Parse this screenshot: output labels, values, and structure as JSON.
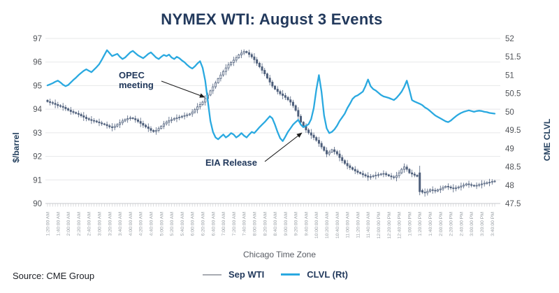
{
  "title": "NYMEX WTI: August 3 Events",
  "source": "Source: CME Group",
  "colors": {
    "title_navy": "#22395c",
    "clvl_line": "#2aa9e0",
    "candle": "#4e5f7b",
    "legend_wti_marker": "#a8acb2",
    "grid": "#e7e8ea",
    "axis_comb": "#c7c9cd",
    "y_tick_text": "#515459",
    "x_tick_text": "#9aa0a6",
    "arrow": "#1c1c1c"
  },
  "legend": [
    {
      "label": "Sep WTI"
    },
    {
      "label": "CLVL (Rt)"
    }
  ],
  "chart_data": {
    "type": "candlestick+line",
    "title": "NYMEX WTI: August 3 Events",
    "xlabel": "Chicago Time Zone",
    "legend_position": "bottom",
    "grid": "horizontal",
    "x_start": "1:20:00 AM",
    "x_end": "3:45:00 PM",
    "x_step_minutes": 5,
    "x_tick_every_steps": 4,
    "x_tick_labels": [
      "1:20:00 AM",
      "1:40:00 AM",
      "2:00:00 AM",
      "2:20:00 AM",
      "2:40:00 AM",
      "3:00:00 AM",
      "3:20:00 AM",
      "3:40:00 AM",
      "4:00:00 AM",
      "4:20:00 AM",
      "4:40:00 AM",
      "5:00:00 AM",
      "5:20:00 AM",
      "5:40:00 AM",
      "6:00:00 AM",
      "6:20:00 AM",
      "6:40:00 AM",
      "7:00:00 AM",
      "7:20:00 AM",
      "7:40:00 AM",
      "8:00:00 AM",
      "8:20:00 AM",
      "8:40:00 AM",
      "9:00:00 AM",
      "9:20:00 AM",
      "9:40:00 AM",
      "10:00:00 AM",
      "10:20:00 AM",
      "10:40:00 AM",
      "11:00:00 AM",
      "11:20:00 AM",
      "11:40:00 AM",
      "12:00:00 PM",
      "12:20:00 PM",
      "12:40:00 PM",
      "1:00:00 PM",
      "1:20:00 PM",
      "1:40:00 PM",
      "2:00:00 PM",
      "2:20:00 PM",
      "2:40:00 PM",
      "3:00:00 PM",
      "3:20:00 PM",
      "3:40:00 PM"
    ],
    "left_axis": {
      "label": "$/barrel",
      "min": 90,
      "max": 97,
      "tick_step": 1
    },
    "right_axis": {
      "label": "CME CLVL",
      "min": 47.5,
      "max": 52,
      "tick_step": 0.5
    },
    "series": [
      {
        "name": "Sep WTI",
        "type": "candlestick",
        "axis": "left",
        "mid": [
          94.32,
          94.28,
          94.25,
          94.2,
          94.15,
          94.12,
          94.08,
          94.02,
          93.96,
          93.9,
          93.86,
          93.82,
          93.78,
          93.72,
          93.66,
          93.6,
          93.56,
          93.52,
          93.5,
          93.46,
          93.42,
          93.38,
          93.35,
          93.3,
          93.25,
          93.22,
          93.28,
          93.35,
          93.42,
          93.5,
          93.56,
          93.6,
          93.63,
          93.6,
          93.55,
          93.48,
          93.4,
          93.32,
          93.25,
          93.18,
          93.1,
          93.05,
          93.1,
          93.18,
          93.28,
          93.38,
          93.45,
          93.52,
          93.56,
          93.6,
          93.63,
          93.66,
          93.7,
          93.73,
          93.76,
          93.8,
          93.88,
          93.98,
          94.1,
          94.2,
          94.3,
          94.45,
          94.6,
          94.78,
          94.95,
          95.12,
          95.3,
          95.45,
          95.6,
          95.75,
          95.88,
          95.98,
          96.08,
          96.18,
          96.3,
          96.38,
          96.45,
          96.4,
          96.32,
          96.22,
          96.1,
          95.95,
          95.8,
          95.65,
          95.5,
          95.32,
          95.15,
          94.98,
          94.85,
          94.75,
          94.65,
          94.58,
          94.5,
          94.4,
          94.3,
          94.15,
          93.95,
          93.7,
          93.45,
          93.28,
          93.12,
          93.0,
          92.9,
          92.8,
          92.68,
          92.55,
          92.4,
          92.25,
          92.1,
          92.18,
          92.28,
          92.2,
          92.1,
          91.95,
          91.82,
          91.7,
          91.6,
          91.52,
          91.45,
          91.38,
          91.32,
          91.27,
          91.22,
          91.17,
          91.12,
          91.14,
          91.17,
          91.2,
          91.22,
          91.25,
          91.27,
          91.22,
          91.17,
          91.13,
          91.1,
          91.18,
          91.3,
          91.45,
          91.55,
          91.45,
          91.3,
          91.25,
          91.2,
          91.15,
          90.55,
          90.48,
          90.45,
          90.52,
          90.58,
          90.56,
          90.53,
          90.58,
          90.62,
          90.68,
          90.73,
          90.7,
          90.66,
          90.63,
          90.66,
          90.7,
          90.74,
          90.78,
          90.83,
          90.8,
          90.77,
          90.74,
          90.77,
          90.8,
          90.83,
          90.86,
          90.88,
          90.9,
          90.93,
          90.95
        ],
        "big_drop_candle": {
          "index": 144,
          "time": "1:20:00 PM",
          "open": 91.3,
          "high": 91.6,
          "low": 90.35,
          "close": 90.5
        }
      },
      {
        "name": "CLVL (Rt)",
        "type": "line",
        "axis": "right",
        "values": [
          50.72,
          50.75,
          50.78,
          50.82,
          50.85,
          50.8,
          50.74,
          50.7,
          50.73,
          50.8,
          50.87,
          50.93,
          51.0,
          51.06,
          51.12,
          51.16,
          51.12,
          51.08,
          51.15,
          51.22,
          51.3,
          51.42,
          51.55,
          51.68,
          51.6,
          51.52,
          51.55,
          51.58,
          51.5,
          51.44,
          51.48,
          51.55,
          51.62,
          51.66,
          51.6,
          51.54,
          51.5,
          51.46,
          51.52,
          51.58,
          51.62,
          51.55,
          51.48,
          51.44,
          51.5,
          51.55,
          51.52,
          51.56,
          51.48,
          51.44,
          51.5,
          51.46,
          51.4,
          51.35,
          51.28,
          51.22,
          51.18,
          51.24,
          51.32,
          51.38,
          51.2,
          50.85,
          50.3,
          49.75,
          49.45,
          49.3,
          49.25,
          49.32,
          49.38,
          49.3,
          49.35,
          49.42,
          49.38,
          49.3,
          49.35,
          49.42,
          49.35,
          49.3,
          49.38,
          49.45,
          49.42,
          49.5,
          49.58,
          49.65,
          49.72,
          49.8,
          49.88,
          49.82,
          49.65,
          49.45,
          49.28,
          49.2,
          49.32,
          49.45,
          49.55,
          49.65,
          49.72,
          49.78,
          49.65,
          49.58,
          49.62,
          49.66,
          49.8,
          50.1,
          50.6,
          51.0,
          50.55,
          49.9,
          49.55,
          49.42,
          49.45,
          49.52,
          49.62,
          49.75,
          49.85,
          49.95,
          50.1,
          50.22,
          50.35,
          50.42,
          50.45,
          50.5,
          50.55,
          50.7,
          50.88,
          50.7,
          50.62,
          50.58,
          50.52,
          50.46,
          50.42,
          50.4,
          50.38,
          50.35,
          50.32,
          50.38,
          50.46,
          50.55,
          50.68,
          50.85,
          50.6,
          50.32,
          50.28,
          50.25,
          50.22,
          50.18,
          50.12,
          50.08,
          50.02,
          49.96,
          49.9,
          49.86,
          49.82,
          49.78,
          49.74,
          49.72,
          49.76,
          49.82,
          49.88,
          49.93,
          49.97,
          50.0,
          50.02,
          50.04,
          50.02,
          50.0,
          50.02,
          50.03,
          50.02,
          50.0,
          49.99,
          49.97,
          49.96,
          49.95
        ]
      }
    ],
    "annotations": [
      {
        "text": "OPEC\nmeeting",
        "target_time": "6:25 AM",
        "points_at": "CLVL (Rt) drop"
      },
      {
        "text": "EIA Release",
        "target_time": "9:30 AM",
        "points_at": "Sep WTI / CLVL at 9:30 AM"
      }
    ]
  },
  "labels": {
    "xlabel": "Chicago Time Zone",
    "left_axis_title": "$/barrel",
    "right_axis_title": "CME CLVL"
  }
}
